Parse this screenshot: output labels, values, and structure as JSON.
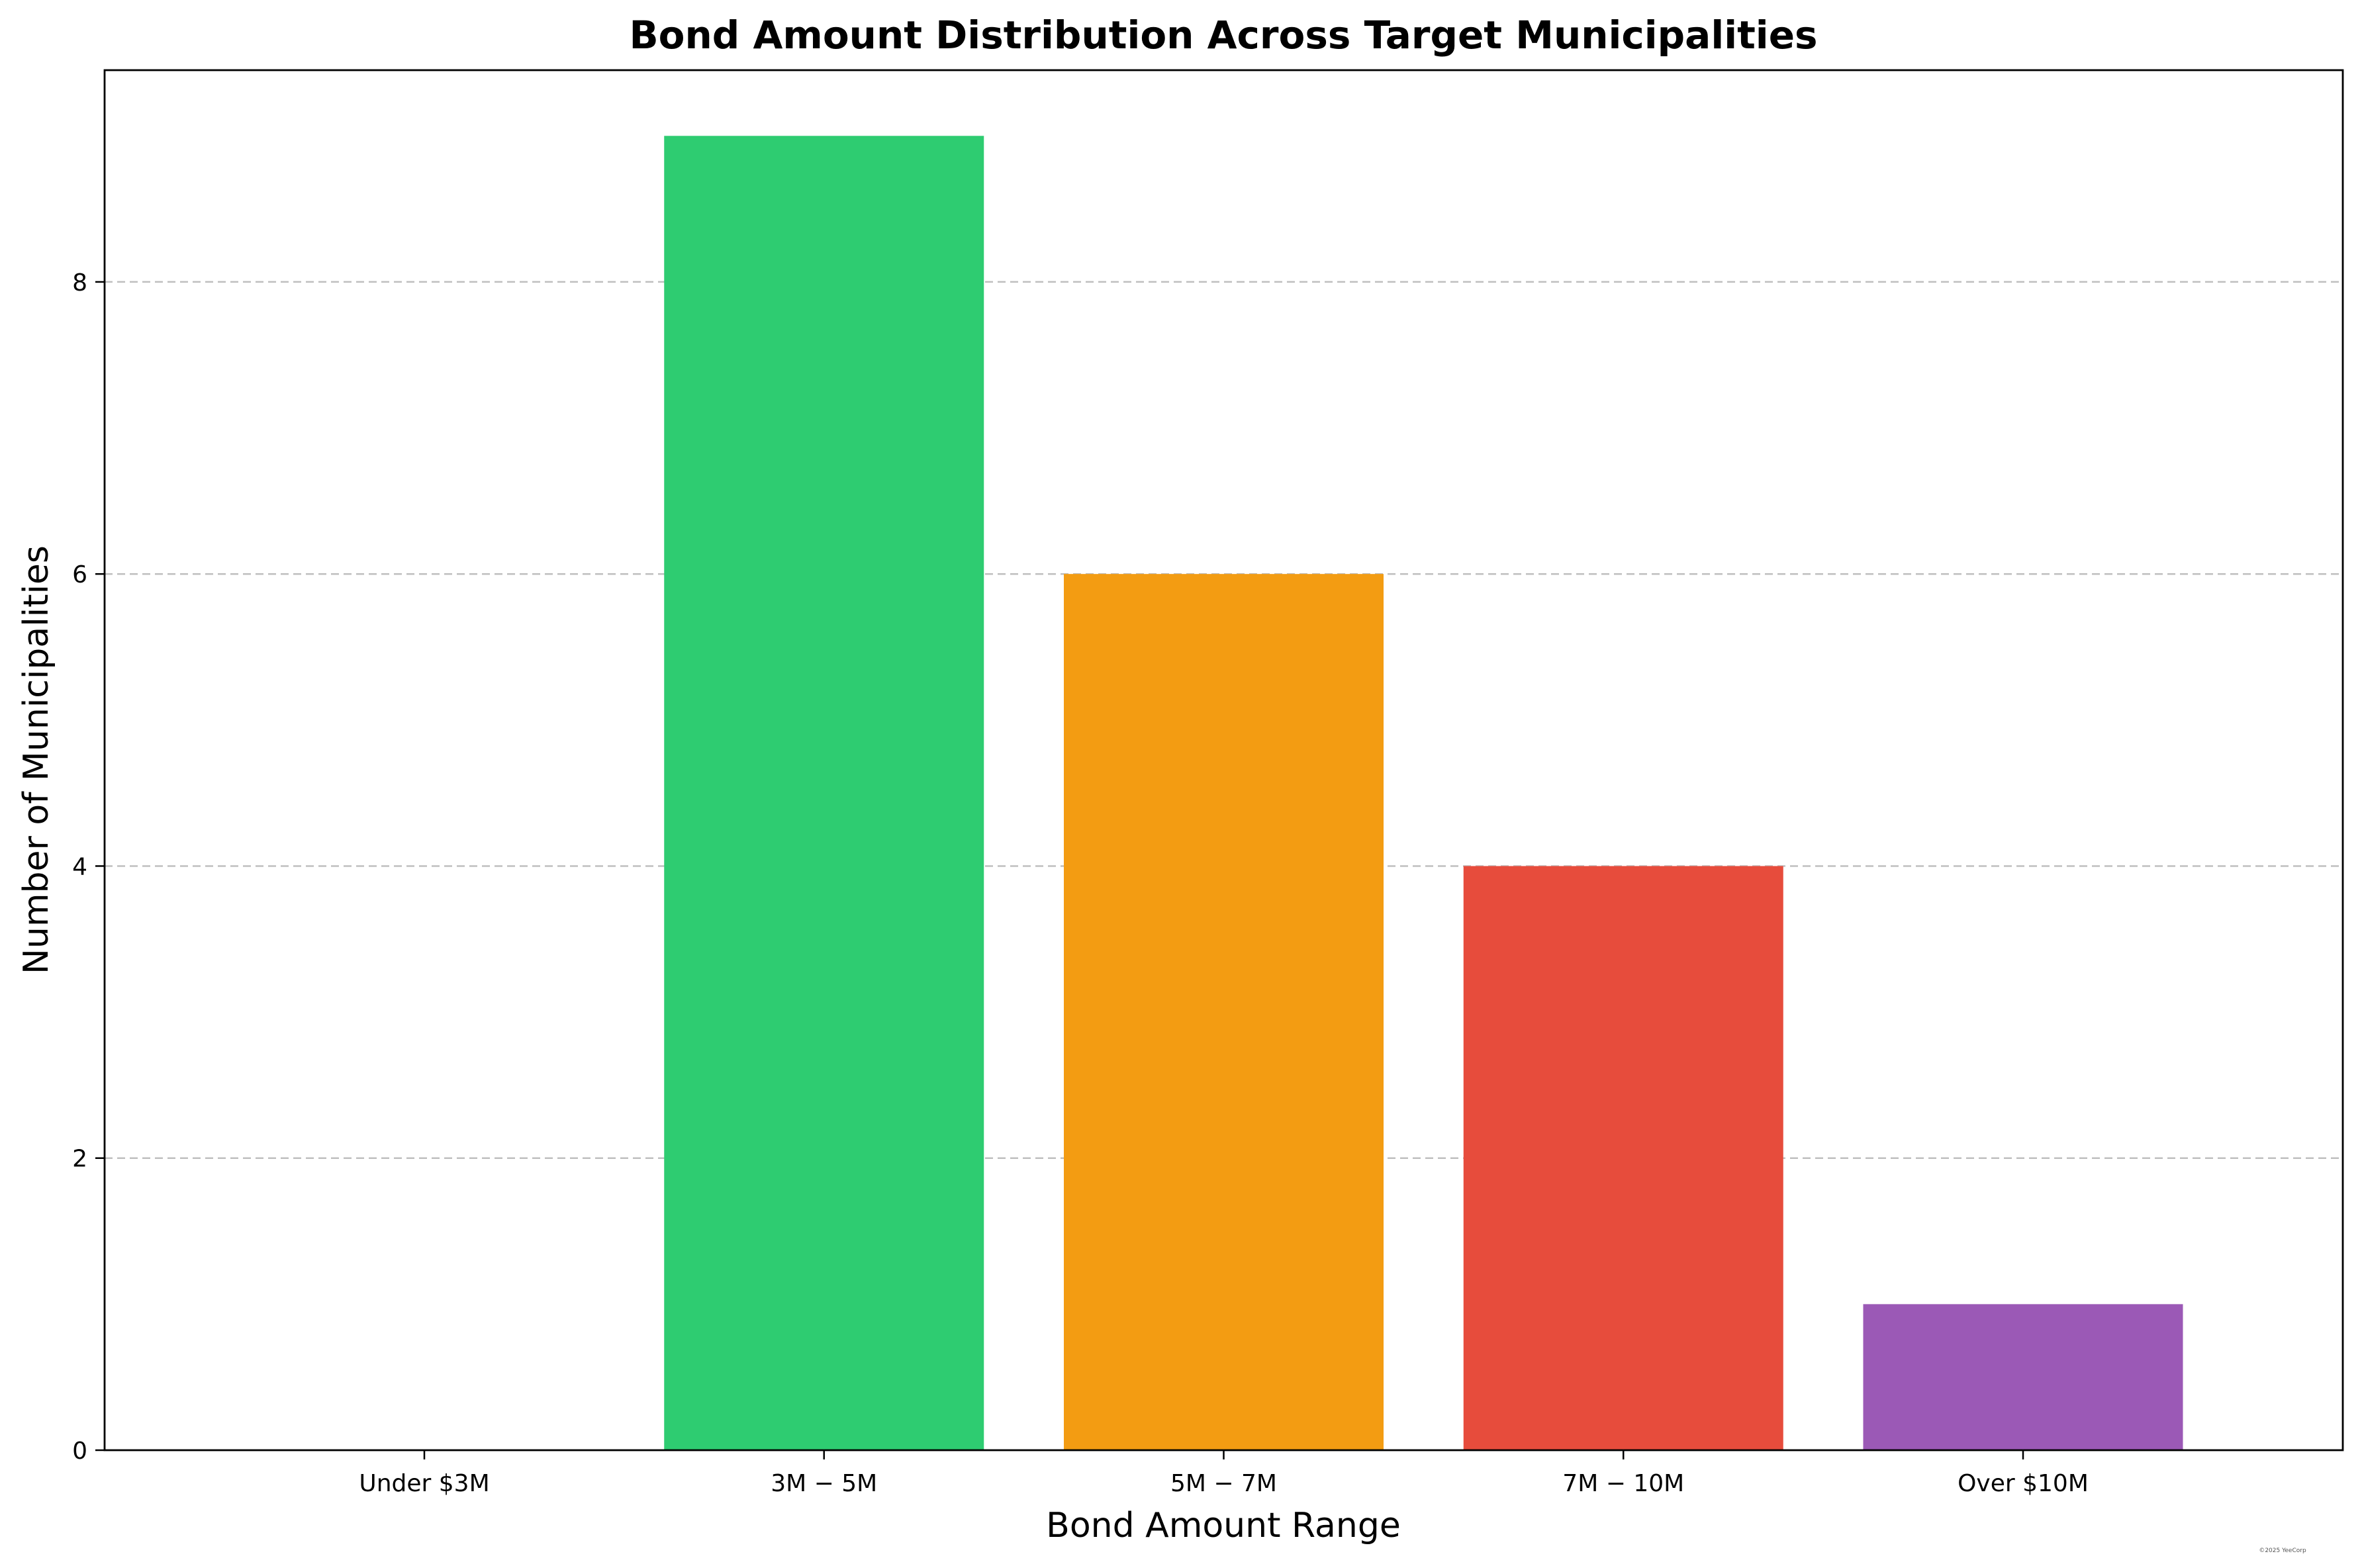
{
  "chart_data": {
    "type": "bar",
    "title": "Bond Amount Distribution Across Target Municipalities",
    "xlabel": "Bond Amount Range",
    "ylabel": "Number of Municipalities",
    "categories": [
      "Under $3M",
      "$3M-$5M",
      "$5M-$7M",
      "$7M-$10M",
      "Over $10M"
    ],
    "category_labels": [
      "Under $3M",
      "3M − 5M",
      "5M − 7M",
      "7M − 10M",
      "Over $10M"
    ],
    "values": [
      0,
      9,
      6,
      4,
      1
    ],
    "colors": [
      "#3498db",
      "#2ecc71",
      "#f39c12",
      "#e74c3c",
      "#9b59b6"
    ],
    "ylim": [
      0,
      9.45
    ],
    "yticks": [
      0,
      2,
      4,
      6,
      8
    ],
    "grid": "y-dashed",
    "legend": "none"
  },
  "watermark": "©2025 YeeCorp"
}
